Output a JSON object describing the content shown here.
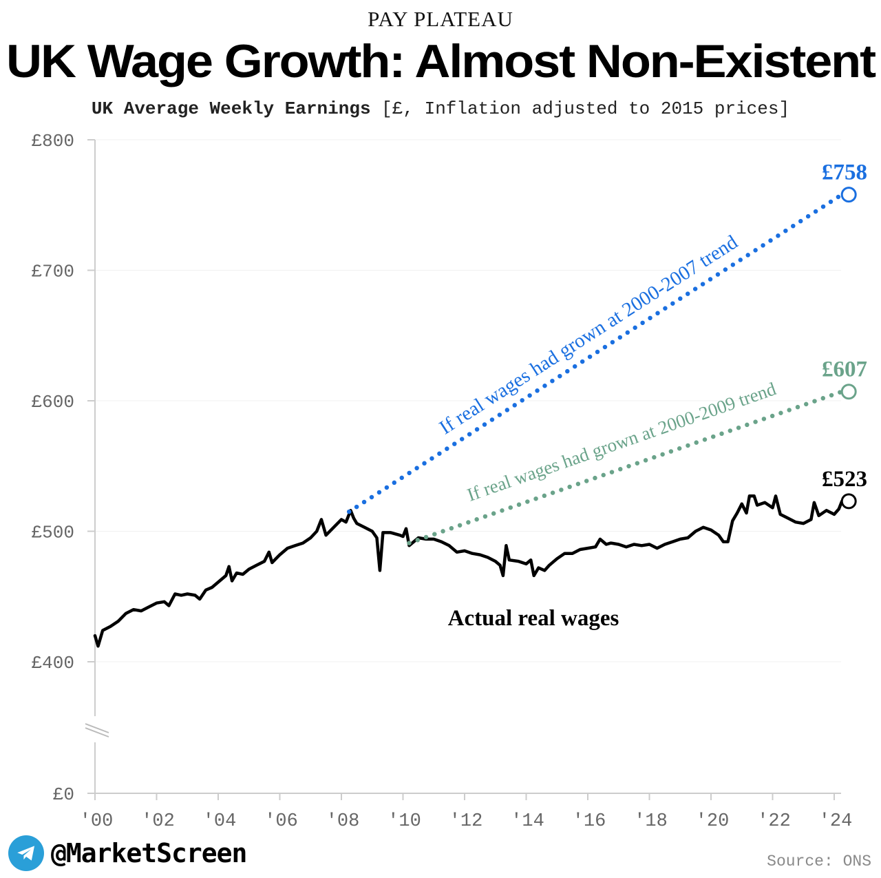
{
  "header": {
    "kicker": "PAY PLATEAU",
    "title": "UK Wage Growth: Almost Non-Existent",
    "subtitle_bold": "UK Average Weekly Earnings",
    "subtitle_rest": " [£, Inflation adjusted to 2015 prices]"
  },
  "footer": {
    "handle": "@MarketScreen",
    "source": "Source: ONS",
    "icon": "telegram-icon"
  },
  "colors": {
    "actual": "#000000",
    "trend_2007": "#1a6fe0",
    "trend_2009": "#6aa38a",
    "axis": "#cccccc",
    "tick_text": "#666666"
  },
  "chart_data": {
    "type": "line",
    "title": "UK Wage Growth: Almost Non-Existent",
    "y_axis_break": true,
    "ylim": [
      0,
      800
    ],
    "y_ticks": [
      {
        "value": 800,
        "label": "£800"
      },
      {
        "value": 700,
        "label": "£700"
      },
      {
        "value": 600,
        "label": "£600"
      },
      {
        "value": 500,
        "label": "£500"
      },
      {
        "value": 400,
        "label": "£400"
      },
      {
        "value": 0,
        "label": "£0"
      }
    ],
    "x_ticks": [
      {
        "value": 2000,
        "label": "'00"
      },
      {
        "value": 2002,
        "label": "'02"
      },
      {
        "value": 2004,
        "label": "'04"
      },
      {
        "value": 2006,
        "label": "'06"
      },
      {
        "value": 2008,
        "label": "'08"
      },
      {
        "value": 2010,
        "label": "'10"
      },
      {
        "value": 2012,
        "label": "'12"
      },
      {
        "value": 2014,
        "label": "'14"
      },
      {
        "value": 2016,
        "label": "'16"
      },
      {
        "value": 2018,
        "label": "'18"
      },
      {
        "value": 2020,
        "label": "'20"
      },
      {
        "value": 2022,
        "label": "'22"
      },
      {
        "value": 2024,
        "label": "'24"
      }
    ],
    "series": [
      {
        "name": "Actual real wages",
        "style": "solid",
        "end_label": "£523",
        "points": [
          [
            2000.0,
            420
          ],
          [
            2000.1,
            412
          ],
          [
            2000.25,
            424
          ],
          [
            2000.5,
            427
          ],
          [
            2000.75,
            431
          ],
          [
            2001.0,
            437
          ],
          [
            2001.25,
            440
          ],
          [
            2001.5,
            439
          ],
          [
            2001.75,
            442
          ],
          [
            2002.0,
            445
          ],
          [
            2002.25,
            446
          ],
          [
            2002.4,
            443
          ],
          [
            2002.6,
            452
          ],
          [
            2002.8,
            451
          ],
          [
            2003.0,
            452
          ],
          [
            2003.25,
            451
          ],
          [
            2003.4,
            448
          ],
          [
            2003.6,
            455
          ],
          [
            2003.8,
            457
          ],
          [
            2004.0,
            461
          ],
          [
            2004.25,
            466
          ],
          [
            2004.35,
            473
          ],
          [
            2004.45,
            462
          ],
          [
            2004.6,
            468
          ],
          [
            2004.8,
            467
          ],
          [
            2005.0,
            471
          ],
          [
            2005.25,
            474
          ],
          [
            2005.5,
            477
          ],
          [
            2005.65,
            484
          ],
          [
            2005.75,
            476
          ],
          [
            2006.0,
            482
          ],
          [
            2006.25,
            487
          ],
          [
            2006.5,
            489
          ],
          [
            2006.75,
            491
          ],
          [
            2007.0,
            495
          ],
          [
            2007.2,
            500
          ],
          [
            2007.35,
            509
          ],
          [
            2007.5,
            497
          ],
          [
            2007.75,
            503
          ],
          [
            2008.0,
            509
          ],
          [
            2008.15,
            507
          ],
          [
            2008.3,
            516
          ],
          [
            2008.4,
            510
          ],
          [
            2008.5,
            506
          ],
          [
            2008.75,
            503
          ],
          [
            2009.0,
            500
          ],
          [
            2009.15,
            495
          ],
          [
            2009.25,
            470
          ],
          [
            2009.35,
            499
          ],
          [
            2009.6,
            499
          ],
          [
            2009.9,
            497
          ],
          [
            2010.0,
            496
          ],
          [
            2010.1,
            502
          ],
          [
            2010.2,
            489
          ],
          [
            2010.5,
            495
          ],
          [
            2010.75,
            494
          ],
          [
            2011.0,
            494
          ],
          [
            2011.25,
            492
          ],
          [
            2011.5,
            489
          ],
          [
            2011.75,
            484
          ],
          [
            2012.0,
            485
          ],
          [
            2012.25,
            483
          ],
          [
            2012.5,
            482
          ],
          [
            2012.75,
            480
          ],
          [
            2013.0,
            477
          ],
          [
            2013.15,
            474
          ],
          [
            2013.25,
            466
          ],
          [
            2013.35,
            489
          ],
          [
            2013.45,
            478
          ],
          [
            2013.75,
            477
          ],
          [
            2014.0,
            475
          ],
          [
            2014.15,
            478
          ],
          [
            2014.25,
            466
          ],
          [
            2014.4,
            472
          ],
          [
            2014.6,
            470
          ],
          [
            2014.75,
            474
          ],
          [
            2015.0,
            479
          ],
          [
            2015.25,
            483
          ],
          [
            2015.5,
            483
          ],
          [
            2015.75,
            486
          ],
          [
            2016.0,
            487
          ],
          [
            2016.25,
            488
          ],
          [
            2016.4,
            494
          ],
          [
            2016.6,
            490
          ],
          [
            2016.75,
            491
          ],
          [
            2017.0,
            490
          ],
          [
            2017.25,
            488
          ],
          [
            2017.5,
            490
          ],
          [
            2017.75,
            489
          ],
          [
            2018.0,
            490
          ],
          [
            2018.25,
            487
          ],
          [
            2018.5,
            490
          ],
          [
            2018.75,
            492
          ],
          [
            2019.0,
            494
          ],
          [
            2019.25,
            495
          ],
          [
            2019.5,
            500
          ],
          [
            2019.75,
            503
          ],
          [
            2020.0,
            501
          ],
          [
            2020.25,
            497
          ],
          [
            2020.4,
            492
          ],
          [
            2020.55,
            492
          ],
          [
            2020.7,
            508
          ],
          [
            2020.85,
            514
          ],
          [
            2021.0,
            521
          ],
          [
            2021.15,
            514
          ],
          [
            2021.25,
            527
          ],
          [
            2021.4,
            527
          ],
          [
            2021.5,
            520
          ],
          [
            2021.75,
            522
          ],
          [
            2022.0,
            518
          ],
          [
            2022.1,
            527
          ],
          [
            2022.25,
            513
          ],
          [
            2022.5,
            510
          ],
          [
            2022.75,
            507
          ],
          [
            2023.0,
            506
          ],
          [
            2023.25,
            509
          ],
          [
            2023.35,
            522
          ],
          [
            2023.5,
            512
          ],
          [
            2023.75,
            516
          ],
          [
            2024.0,
            513
          ],
          [
            2024.15,
            517
          ],
          [
            2024.25,
            523
          ]
        ]
      },
      {
        "name": "If real wages had grown at 2000-2007 trend",
        "style": "dotted",
        "end_label": "£758",
        "points": [
          [
            2008.25,
            515
          ],
          [
            2024.25,
            758
          ]
        ]
      },
      {
        "name": "If real wages had grown at 2000-2009 trend",
        "style": "dotted",
        "end_label": "£607",
        "points": [
          [
            2010.2,
            491
          ],
          [
            2024.25,
            607
          ]
        ]
      }
    ]
  }
}
